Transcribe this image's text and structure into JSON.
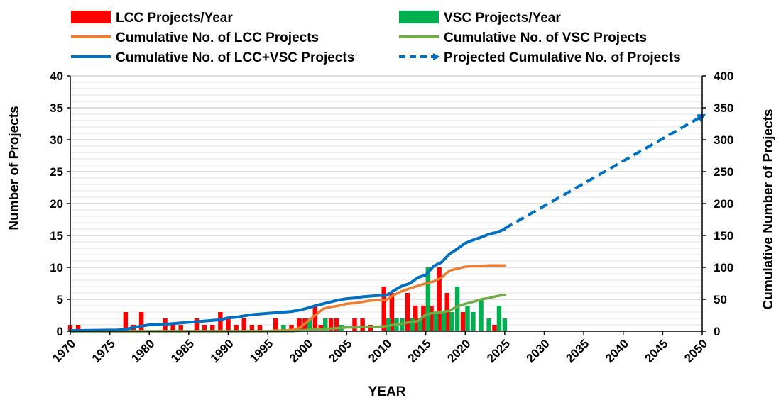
{
  "chart_data": {
    "type": "bar",
    "title": "",
    "xlabel": "YEAR",
    "ylabel": "Number of Projects",
    "y2label": "Cumulative Number of Projects",
    "xlim": [
      1970,
      2050
    ],
    "ylim": [
      0,
      40
    ],
    "y2lim": [
      0,
      400
    ],
    "x_ticks": [
      1970,
      1975,
      1980,
      1985,
      1990,
      1995,
      2000,
      2005,
      2010,
      2015,
      2020,
      2025,
      2030,
      2035,
      2040,
      2045,
      2050
    ],
    "y_ticks": [
      0,
      5,
      10,
      15,
      20,
      25,
      30,
      35,
      40
    ],
    "y2_ticks": [
      0,
      50,
      100,
      150,
      200,
      250,
      300,
      350,
      400
    ],
    "grid": true,
    "legend_position": "top",
    "colors": {
      "lcc_bar": "#ff0000",
      "vsc_bar": "#00b050",
      "lcc_cum": "#ed7d31",
      "vsc_cum": "#70ad47",
      "total_cum": "#0070c0",
      "projected": "#0070c0"
    },
    "legend": [
      {
        "label": "LCC Projects/Year",
        "kind": "bar",
        "color": "#ff0000"
      },
      {
        "label": "VSC Projects/Year",
        "kind": "bar",
        "color": "#00b050"
      },
      {
        "label": "Cumulative No. of LCC Projects",
        "kind": "line",
        "color": "#ed7d31"
      },
      {
        "label": "Cumulative No. of VSC Projects",
        "kind": "line",
        "color": "#70ad47"
      },
      {
        "label": "Cumulative No. of LCC+VSC Projects",
        "kind": "line",
        "color": "#0070c0"
      },
      {
        "label": "Projected Cumulative No. of Projects",
        "kind": "dashed",
        "color": "#0070c0"
      }
    ],
    "bar_series": [
      {
        "name": "LCC Projects/Year",
        "axis": "left",
        "x": [
          1970,
          1971,
          1977,
          1978,
          1979,
          1982,
          1983,
          1984,
          1986,
          1987,
          1988,
          1989,
          1990,
          1991,
          1992,
          1993,
          1994,
          1996,
          1998,
          1999,
          2000,
          2001,
          2002,
          2003,
          2004,
          2006,
          2007,
          2008,
          2010,
          2011,
          2013,
          2014,
          2015,
          2016,
          2017,
          2018,
          2020,
          2024
        ],
        "values": [
          1,
          1,
          3,
          1,
          3,
          2,
          1,
          1,
          2,
          1,
          1,
          3,
          2,
          1,
          2,
          1,
          1,
          2,
          1,
          2,
          2,
          4,
          1,
          2,
          2,
          2,
          2,
          1,
          7,
          6,
          6,
          4,
          4,
          4,
          10,
          6,
          3,
          1
        ]
      },
      {
        "name": "VSC Projects/Year",
        "axis": "left",
        "x": [
          1997,
          2000,
          2002,
          2004,
          2010,
          2011,
          2012,
          2013,
          2014,
          2015,
          2016,
          2017,
          2018,
          2019,
          2020,
          2021,
          2022,
          2023,
          2024,
          2025
        ],
        "values": [
          1,
          2,
          2,
          1,
          2,
          2,
          2,
          2,
          2,
          10,
          3,
          3,
          3,
          7,
          4,
          3,
          5,
          2,
          4,
          2
        ]
      }
    ],
    "line_series": [
      {
        "name": "Cumulative No. of LCC Projects",
        "axis": "right",
        "x": [
          1970,
          1976,
          1977,
          1978,
          1979,
          1980,
          1981,
          1982,
          1983,
          1984,
          1985,
          1986,
          1987,
          1988,
          1989,
          1990,
          1991,
          1992,
          1993,
          1994,
          1995,
          1996,
          1997,
          1998,
          1999,
          2000,
          2001,
          2002,
          2003,
          2004,
          2005,
          2006,
          2007,
          2008,
          2009,
          2010,
          2011,
          2012,
          2013,
          2014,
          2015,
          2016,
          2017,
          2018,
          2019,
          2020,
          2021,
          2022,
          2023,
          2024,
          2025
        ],
        "values": [
          0,
          0,
          0,
          0,
          0,
          0,
          0,
          0,
          0,
          0,
          0,
          0,
          0,
          0,
          0,
          0,
          0,
          0,
          0,
          0,
          0,
          1,
          1,
          2,
          5,
          15,
          25,
          35,
          38,
          40,
          43,
          44,
          46,
          48,
          49,
          49,
          57,
          63,
          67,
          71,
          75,
          78,
          84,
          95,
          98,
          101,
          102,
          102,
          103,
          103,
          103
        ]
      },
      {
        "name": "Cumulative No. of VSC Projects",
        "axis": "right",
        "x": [
          1970,
          1997,
          1998,
          1999,
          2000,
          2001,
          2002,
          2003,
          2004,
          2005,
          2006,
          2007,
          2008,
          2009,
          2010,
          2011,
          2012,
          2013,
          2014,
          2015,
          2016,
          2017,
          2018,
          2019,
          2020,
          2021,
          2022,
          2023,
          2024,
          2025
        ],
        "values": [
          0,
          0,
          0,
          1,
          2,
          3,
          3,
          4,
          5,
          6,
          6,
          7,
          7,
          7,
          8,
          10,
          12,
          14,
          16,
          26,
          29,
          30,
          32,
          39,
          43,
          46,
          50,
          52,
          55,
          57
        ]
      },
      {
        "name": "Cumulative No. of LCC+VSC Projects",
        "axis": "right",
        "x": [
          1970,
          1976,
          1977,
          1978,
          1979,
          1980,
          1981,
          1982,
          1983,
          1984,
          1985,
          1986,
          1987,
          1988,
          1989,
          1990,
          1991,
          1992,
          1993,
          1994,
          1995,
          1996,
          1997,
          1998,
          1999,
          2000,
          2001,
          2002,
          2003,
          2004,
          2005,
          2006,
          2007,
          2008,
          2009,
          2010,
          2011,
          2012,
          2013,
          2014,
          2015,
          2016,
          2017,
          2018,
          2019,
          2020,
          2021,
          2022,
          2023,
          2024,
          2025
        ],
        "values": [
          1,
          2,
          3,
          6,
          8,
          10,
          10,
          11,
          12,
          13,
          14,
          15,
          16,
          17,
          18,
          21,
          22,
          24,
          26,
          27,
          28,
          29,
          30,
          31,
          33,
          36,
          40,
          43,
          46,
          49,
          51,
          52,
          54,
          55,
          56,
          56,
          64,
          71,
          75,
          84,
          88,
          102,
          108,
          121,
          129,
          138,
          143,
          147,
          152,
          155,
          160
        ]
      }
    ],
    "projected": {
      "name": "Projected Cumulative No. of Projects",
      "axis": "right",
      "x": [
        2025,
        2050
      ],
      "values": [
        161,
        337
      ]
    }
  }
}
